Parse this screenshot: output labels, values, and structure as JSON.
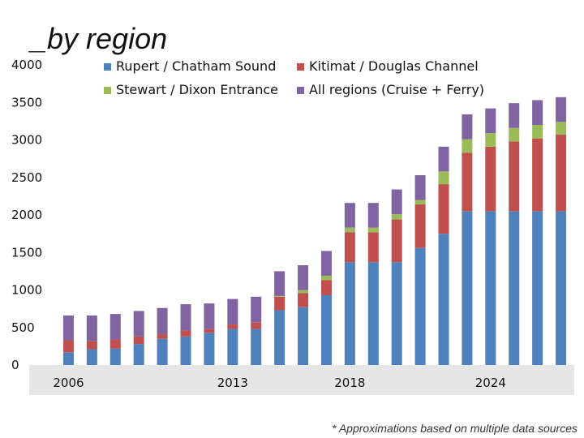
{
  "chart_data": {
    "type": "bar",
    "stacked": true,
    "title": "_by region",
    "footnote": "* Approximations based on multiple data sources",
    "ylim": [
      0,
      4000
    ],
    "yticks": [
      "0",
      "500",
      "1000",
      "1500",
      "2000",
      "2500",
      "3000",
      "3500",
      "4000"
    ],
    "xtick_labels": [
      {
        "label": "2006",
        "index": 0
      },
      {
        "label": "2013",
        "index": 7
      },
      {
        "label": "2018",
        "index": 12
      },
      {
        "label": "2024",
        "index": 18
      }
    ],
    "categories": [
      "2006",
      "2007",
      "2008",
      "2009",
      "2010",
      "2011",
      "2012",
      "2013",
      "2014",
      "2015",
      "2016",
      "2017",
      "2018",
      "2019",
      "2020",
      "2021",
      "2022",
      "2023",
      "2024",
      "2025",
      "2026",
      "2027"
    ],
    "series": [
      {
        "name": "Rupert / Chatham Sound",
        "color": "#4f81bd",
        "values": [
          170,
          210,
          220,
          280,
          350,
          380,
          430,
          480,
          480,
          730,
          770,
          930,
          1370,
          1370,
          1370,
          1560,
          1750,
          2050,
          2050,
          2050,
          2050,
          2050
        ]
      },
      {
        "name": "Kitimat / Douglas Channel",
        "color": "#c0504d",
        "values": [
          160,
          110,
          120,
          100,
          60,
          80,
          50,
          60,
          90,
          180,
          190,
          200,
          400,
          400,
          570,
          580,
          660,
          780,
          860,
          930,
          970,
          1020
        ]
      },
      {
        "name": "Stewart / Dixon Entrance",
        "color": "#9bbb59",
        "values": [
          0,
          0,
          0,
          0,
          0,
          0,
          0,
          0,
          0,
          10,
          40,
          60,
          60,
          60,
          70,
          60,
          170,
          180,
          180,
          180,
          180,
          170
        ]
      },
      {
        "name": "All regions (Cruise + Ferry)",
        "color": "#8064a2",
        "values": [
          330,
          340,
          340,
          340,
          350,
          350,
          340,
          340,
          340,
          330,
          330,
          330,
          330,
          330,
          330,
          330,
          330,
          330,
          330,
          330,
          330,
          330
        ]
      }
    ],
    "legend": [
      {
        "label": "Rupert / Chatham Sound",
        "color": "#4f81bd"
      },
      {
        "label": "Kitimat / Douglas Channel",
        "color": "#c0504d"
      },
      {
        "label": "Stewart / Dixon Entrance",
        "color": "#9bbb59"
      },
      {
        "label": "All regions (Cruise + Ferry)",
        "color": "#8064a2"
      }
    ]
  }
}
